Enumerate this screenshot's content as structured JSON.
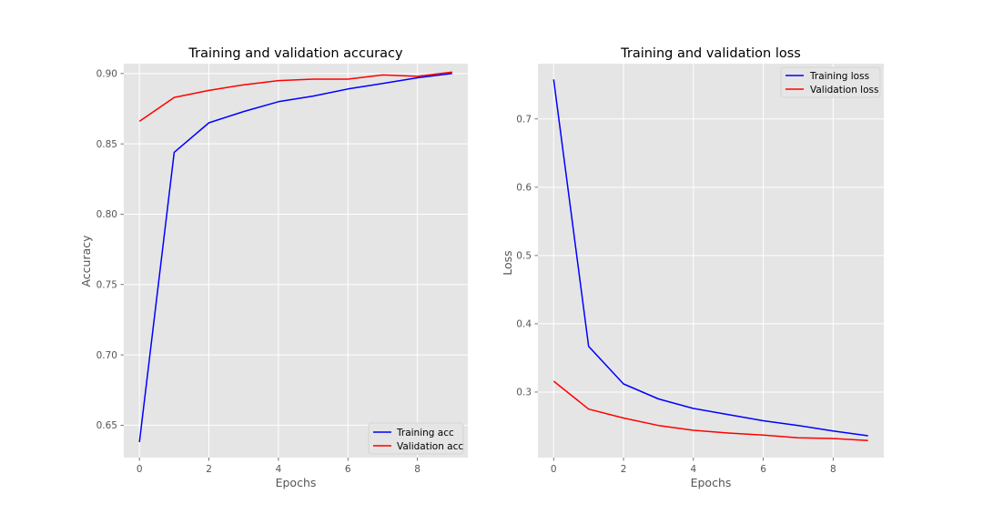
{
  "chart_data": [
    {
      "type": "line",
      "title": "Training and validation accuracy",
      "xlabel": "Epochs",
      "ylabel": "Accuracy",
      "xlim": [
        -0.45,
        9.45
      ],
      "ylim": [
        0.627,
        0.907
      ],
      "xticks": [
        "0",
        "2",
        "4",
        "6",
        "8"
      ],
      "yticks": [
        "0.65",
        "0.70",
        "0.75",
        "0.80",
        "0.85",
        "0.90"
      ],
      "grid": true,
      "legend_position": "lower-right",
      "x": [
        0,
        1,
        2,
        3,
        4,
        5,
        6,
        7,
        8,
        9
      ],
      "series": [
        {
          "name": "Training acc",
          "color": "#0000ff",
          "values": [
            0.638,
            0.844,
            0.865,
            0.873,
            0.88,
            0.884,
            0.889,
            0.893,
            0.897,
            0.9
          ]
        },
        {
          "name": "Validation acc",
          "color": "#ff0000",
          "values": [
            0.866,
            0.883,
            0.888,
            0.892,
            0.895,
            0.896,
            0.896,
            0.899,
            0.898,
            0.901
          ]
        }
      ]
    },
    {
      "type": "line",
      "title": "Training and validation loss",
      "xlabel": "Epochs",
      "ylabel": "Loss",
      "xlim": [
        -0.45,
        9.45
      ],
      "ylim": [
        0.204,
        0.781
      ],
      "xticks": [
        "0",
        "2",
        "4",
        "6",
        "8"
      ],
      "yticks": [
        "0.3",
        "0.4",
        "0.5",
        "0.6",
        "0.7"
      ],
      "grid": true,
      "legend_position": "upper-right",
      "x": [
        0,
        1,
        2,
        3,
        4,
        5,
        6,
        7,
        8,
        9
      ],
      "series": [
        {
          "name": "Training loss",
          "color": "#0000ff",
          "values": [
            0.758,
            0.367,
            0.312,
            0.29,
            0.276,
            0.267,
            0.258,
            0.251,
            0.243,
            0.236
          ]
        },
        {
          "name": "Validation loss",
          "color": "#ff0000",
          "values": [
            0.316,
            0.275,
            0.262,
            0.251,
            0.244,
            0.24,
            0.237,
            0.233,
            0.232,
            0.229
          ]
        }
      ]
    }
  ]
}
